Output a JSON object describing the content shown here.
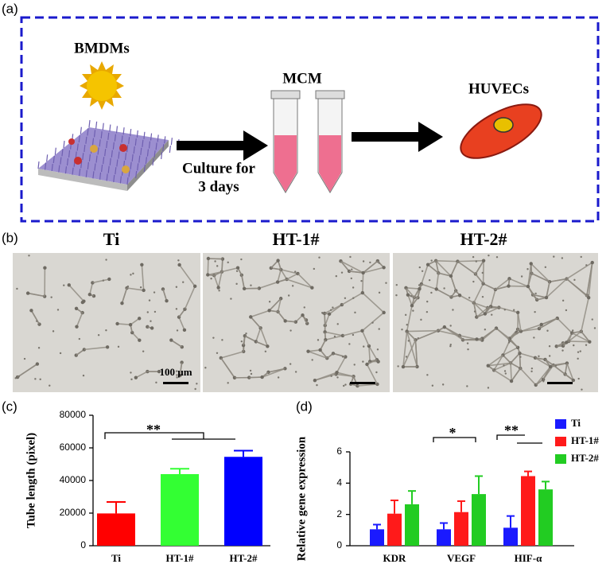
{
  "panel_labels": [
    "(a)",
    "(b)",
    "(c)",
    "(d)"
  ],
  "schematic": {
    "cell_source": "BMDMs",
    "medium": "MCM",
    "target": "HUVECs",
    "step_line1": "Culture for",
    "step_line2": "3 days"
  },
  "micrographs": {
    "titles": [
      "Ti",
      "HT-1#",
      "HT-2#"
    ],
    "scale_bar": "100 µm"
  },
  "chart_data": [
    {
      "type": "bar",
      "y_label": "Tube length (pixel)",
      "categories": [
        "Ti",
        "HT-1#",
        "HT-2#"
      ],
      "values": [
        19800,
        43900,
        54500
      ],
      "errors": [
        7000,
        3300,
        3800
      ],
      "colors": [
        "#ff0000",
        "#33ff33",
        "#0000ff"
      ],
      "ylim": [
        0,
        80000
      ],
      "yticks": [
        0,
        20000,
        40000,
        60000,
        80000
      ],
      "annotations": [
        "**"
      ]
    },
    {
      "type": "grouped_bar",
      "y_label": "Relative gene expression",
      "categories": [
        "KDR",
        "VEGF",
        "HIF-α"
      ],
      "series": [
        {
          "name": "Ti",
          "color": "#1a1aff",
          "values": [
            1.05,
            1.05,
            1.15
          ],
          "errors": [
            0.3,
            0.4,
            0.75
          ]
        },
        {
          "name": "HT-1#",
          "color": "#ff1a1a",
          "values": [
            2.05,
            2.15,
            4.45
          ],
          "errors": [
            0.85,
            0.7,
            0.3
          ]
        },
        {
          "name": "HT-2#",
          "color": "#22cc22",
          "values": [
            2.65,
            3.3,
            3.6
          ],
          "errors": [
            0.85,
            1.15,
            0.5
          ]
        }
      ],
      "ylim": [
        0,
        6
      ],
      "yticks": [
        0,
        2,
        4,
        6
      ],
      "legend": "upper right",
      "annotations": [
        "*",
        "**"
      ]
    }
  ]
}
